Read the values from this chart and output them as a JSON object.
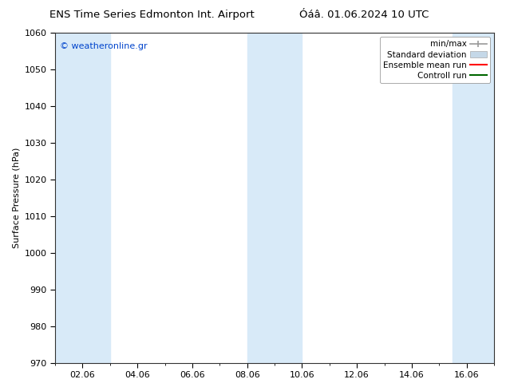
{
  "title_left": "ENS Time Series Edmonton Int. Airport",
  "title_right": "Óáâ. 01.06.2024 10 UTC",
  "ylabel": "Surface Pressure (hPa)",
  "ylim": [
    970,
    1060
  ],
  "yticks": [
    970,
    980,
    990,
    1000,
    1010,
    1020,
    1030,
    1040,
    1050,
    1060
  ],
  "xlim_start": 1.0,
  "xlim_end": 17.0,
  "xtick_labels": [
    "02.06",
    "04.06",
    "06.06",
    "08.06",
    "10.06",
    "12.06",
    "14.06",
    "16.06"
  ],
  "xtick_positions": [
    2,
    4,
    6,
    8,
    10,
    12,
    14,
    16
  ],
  "watermark": "© weatheronline.gr",
  "watermark_color": "#0044cc",
  "bg_color": "#ffffff",
  "plot_bg_color": "#ffffff",
  "shaded_bands": [
    {
      "xmin": 1.0,
      "xmax": 3.0,
      "color": "#d8eaf8"
    },
    {
      "xmin": 8.0,
      "xmax": 10.0,
      "color": "#d8eaf8"
    },
    {
      "xmin": 15.5,
      "xmax": 17.0,
      "color": "#d8eaf8"
    }
  ],
  "legend_entries": [
    {
      "label": "min/max",
      "color": "#999999",
      "style": "errorbar"
    },
    {
      "label": "Standard deviation",
      "color": "#c5d8e8",
      "style": "fill"
    },
    {
      "label": "Ensemble mean run",
      "color": "#ff0000",
      "style": "line"
    },
    {
      "label": "Controll run",
      "color": "#006600",
      "style": "line"
    }
  ],
  "font_size_title": 9.5,
  "font_size_axis": 8,
  "font_size_legend": 7.5,
  "font_size_watermark": 8
}
